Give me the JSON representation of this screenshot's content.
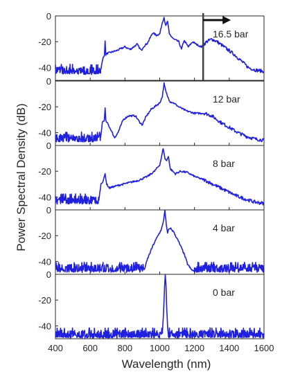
{
  "chart_data": {
    "type": "line",
    "xlabel": "Wavelength (nm)",
    "ylabel": "Power Spectral Density (dB)",
    "xlim": [
      400,
      1600
    ],
    "ylim": [
      -50,
      0
    ],
    "x_ticks": [
      400,
      600,
      800,
      1000,
      1200,
      1400,
      1600
    ],
    "y_ticks": [
      0,
      -20,
      -40
    ],
    "grid": false,
    "line_color": "#1f1fe0",
    "marker": {
      "x": 1250,
      "direction": "right",
      "panel": 0,
      "color": "#404040"
    },
    "panels": [
      {
        "label": "16.5 bar",
        "noise_floor": -42,
        "noise_span": [
          400,
          660
        ],
        "points": [
          [
            660,
            -42
          ],
          [
            675,
            -32
          ],
          [
            682,
            -30
          ],
          [
            686,
            -20
          ],
          [
            690,
            -30
          ],
          [
            700,
            -29
          ],
          [
            750,
            -27
          ],
          [
            800,
            -24
          ],
          [
            830,
            -26
          ],
          [
            850,
            -24
          ],
          [
            870,
            -22
          ],
          [
            895,
            -27
          ],
          [
            905,
            -24
          ],
          [
            930,
            -21
          ],
          [
            960,
            -13
          ],
          [
            980,
            -15
          ],
          [
            1000,
            -14
          ],
          [
            1015,
            -5
          ],
          [
            1025,
            -1
          ],
          [
            1035,
            -8
          ],
          [
            1045,
            -4
          ],
          [
            1055,
            -14
          ],
          [
            1080,
            -18
          ],
          [
            1110,
            -20
          ],
          [
            1125,
            -26
          ],
          [
            1140,
            -19
          ],
          [
            1165,
            -24
          ],
          [
            1190,
            -20
          ],
          [
            1210,
            -22
          ],
          [
            1240,
            -24
          ],
          [
            1270,
            -20
          ],
          [
            1300,
            -18
          ],
          [
            1330,
            -20
          ],
          [
            1380,
            -25
          ],
          [
            1430,
            -30
          ],
          [
            1470,
            -35
          ],
          [
            1510,
            -40
          ],
          [
            1550,
            -42
          ],
          [
            1600,
            -43
          ]
        ]
      },
      {
        "label": "12 bar",
        "noise_floor": -44,
        "noise_span": [
          400,
          660
        ],
        "points": [
          [
            660,
            -44
          ],
          [
            670,
            -32
          ],
          [
            682,
            -30
          ],
          [
            686,
            -21
          ],
          [
            690,
            -31
          ],
          [
            700,
            -33
          ],
          [
            720,
            -38
          ],
          [
            740,
            -44
          ],
          [
            760,
            -40
          ],
          [
            790,
            -30
          ],
          [
            820,
            -27
          ],
          [
            860,
            -27
          ],
          [
            885,
            -32
          ],
          [
            900,
            -34
          ],
          [
            920,
            -28
          ],
          [
            950,
            -22
          ],
          [
            980,
            -19
          ],
          [
            1000,
            -17
          ],
          [
            1015,
            -12
          ],
          [
            1025,
            -2
          ],
          [
            1035,
            -8
          ],
          [
            1045,
            -12
          ],
          [
            1060,
            -16
          ],
          [
            1080,
            -17
          ],
          [
            1110,
            -20
          ],
          [
            1150,
            -23
          ],
          [
            1200,
            -25
          ],
          [
            1260,
            -25
          ],
          [
            1300,
            -27
          ],
          [
            1350,
            -32
          ],
          [
            1400,
            -36
          ],
          [
            1450,
            -40
          ],
          [
            1500,
            -43
          ],
          [
            1550,
            -45
          ],
          [
            1600,
            -46
          ]
        ]
      },
      {
        "label": "8 bar",
        "noise_floor": -42,
        "noise_span": [
          400,
          650
        ],
        "points": [
          [
            650,
            -42
          ],
          [
            662,
            -30
          ],
          [
            676,
            -27
          ],
          [
            686,
            -22
          ],
          [
            695,
            -30
          ],
          [
            710,
            -33
          ],
          [
            760,
            -31
          ],
          [
            820,
            -29
          ],
          [
            880,
            -27
          ],
          [
            930,
            -24
          ],
          [
            970,
            -20
          ],
          [
            1000,
            -15
          ],
          [
            1012,
            -8
          ],
          [
            1020,
            -2
          ],
          [
            1030,
            -10
          ],
          [
            1040,
            -12
          ],
          [
            1050,
            -8
          ],
          [
            1060,
            -18
          ],
          [
            1090,
            -22
          ],
          [
            1120,
            -20
          ],
          [
            1160,
            -21
          ],
          [
            1200,
            -24
          ],
          [
            1260,
            -27
          ],
          [
            1320,
            -31
          ],
          [
            1380,
            -35
          ],
          [
            1440,
            -39
          ],
          [
            1500,
            -42
          ],
          [
            1550,
            -44
          ],
          [
            1600,
            -45
          ]
        ]
      },
      {
        "label": "4 bar",
        "noise_floor": -45,
        "noise_span": [
          400,
          910
        ],
        "points": [
          [
            910,
            -47
          ],
          [
            930,
            -38
          ],
          [
            960,
            -28
          ],
          [
            990,
            -20
          ],
          [
            1010,
            -15
          ],
          [
            1020,
            -10
          ],
          [
            1030,
            0
          ],
          [
            1038,
            -12
          ],
          [
            1045,
            -18
          ],
          [
            1050,
            -16
          ],
          [
            1060,
            -14
          ],
          [
            1080,
            -17
          ],
          [
            1110,
            -25
          ],
          [
            1140,
            -34
          ],
          [
            1160,
            -42
          ],
          [
            1180,
            -46
          ],
          [
            1200,
            -48
          ]
        ],
        "tail_noise_span": [
          1200,
          1600
        ]
      },
      {
        "label": "0 bar",
        "noise_floor": -46,
        "noise_span": [
          400,
          1015
        ],
        "points": [
          [
            1015,
            -46
          ],
          [
            1022,
            -30
          ],
          [
            1028,
            -10
          ],
          [
            1032,
            0
          ],
          [
            1036,
            -8
          ],
          [
            1040,
            -25
          ],
          [
            1045,
            -40
          ],
          [
            1050,
            -47
          ]
        ],
        "tail_noise_span": [
          1050,
          1600
        ]
      }
    ]
  }
}
